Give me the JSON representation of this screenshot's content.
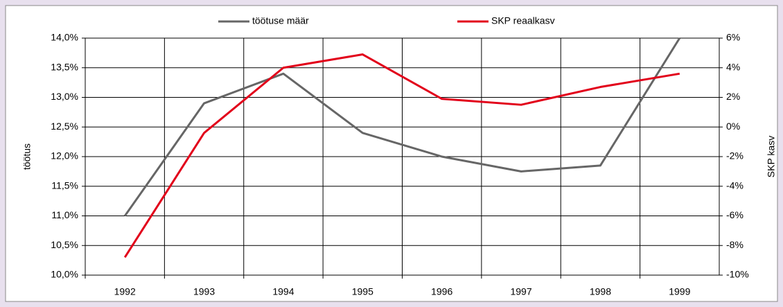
{
  "chart_data": {
    "type": "line",
    "categories": [
      "1992",
      "1993",
      "1994",
      "1995",
      "1996",
      "1997",
      "1998",
      "1999"
    ],
    "series": [
      {
        "name": "töötuse määr",
        "color": "#666666",
        "values": [
          11.0,
          12.9,
          13.4,
          12.4,
          12.0,
          11.75,
          11.85,
          14.0
        ]
      },
      {
        "name": "SKP reaalkasv",
        "color": "#e2001a",
        "axis": "y2",
        "values": [
          -8.8,
          -0.4,
          4.0,
          4.9,
          1.9,
          1.5,
          2.7,
          3.6
        ]
      }
    ],
    "y_label": "töötus",
    "y2_label": "SKP kasv",
    "ylim": [
      10,
      14
    ],
    "yticks": [
      {
        "value": 10,
        "label": "10,0%"
      },
      {
        "value": 10.5,
        "label": "10,5%"
      },
      {
        "value": 11,
        "label": "11,0%"
      },
      {
        "value": 11.5,
        "label": "11,5%"
      },
      {
        "value": 12,
        "label": "12,0%"
      },
      {
        "value": 12.5,
        "label": "12,5%"
      },
      {
        "value": 13,
        "label": "13,0%"
      },
      {
        "value": 13.5,
        "label": "13,5%"
      },
      {
        "value": 14,
        "label": "14,0%"
      }
    ],
    "y2lim": [
      -10,
      6
    ],
    "y2ticks": [
      {
        "value": -10,
        "label": "-10%"
      },
      {
        "value": -8,
        "label": "-8%"
      },
      {
        "value": -6,
        "label": "-6%"
      },
      {
        "value": -4,
        "label": "-4%"
      },
      {
        "value": -2,
        "label": "-2%"
      },
      {
        "value": 0,
        "label": "0%"
      },
      {
        "value": 2,
        "label": "2%"
      },
      {
        "value": 4,
        "label": "4%"
      },
      {
        "value": 6,
        "label": "6%"
      }
    ],
    "grid": true
  }
}
